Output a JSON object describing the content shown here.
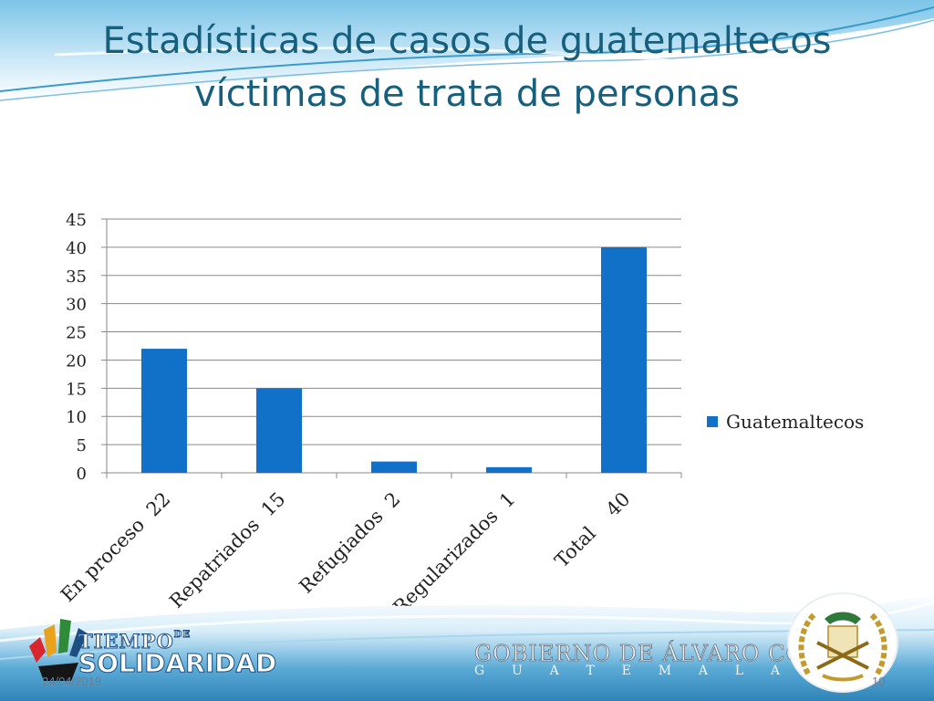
{
  "slide": {
    "title_line1": "Estadísticas de casos de guatemaltecos",
    "title_line2": "víctimas de trata de personas",
    "date": "24/04/2019",
    "page_number": "10"
  },
  "branding": {
    "logo_left_line1": "TIEMPO",
    "logo_left_de": "DE",
    "logo_left_line2": "SOLIDARIDAD",
    "gov_name": "GOBIERNO DE ÁLVARO COLOM",
    "gov_country": [
      "G",
      "U",
      "A",
      "T",
      "E",
      "M",
      "A",
      "L",
      "A"
    ]
  },
  "chart_data": {
    "type": "bar",
    "categories": [
      "En proceso  22",
      "Repatriados  15",
      "Refugiados  2",
      "Regularizados  1",
      "Total    40"
    ],
    "series": [
      {
        "name": "Guatemaltecos",
        "values": [
          22,
          15,
          2,
          1,
          40
        ],
        "color": "#1170c8"
      }
    ],
    "ylim": [
      0,
      45
    ],
    "yticks": [
      0,
      5,
      10,
      15,
      20,
      25,
      30,
      35,
      40,
      45
    ],
    "grid": true,
    "legend_position": "right"
  },
  "colors": {
    "title": "#17607d",
    "bar": "#1170c8",
    "accent_teal": "#2c8fb8"
  }
}
